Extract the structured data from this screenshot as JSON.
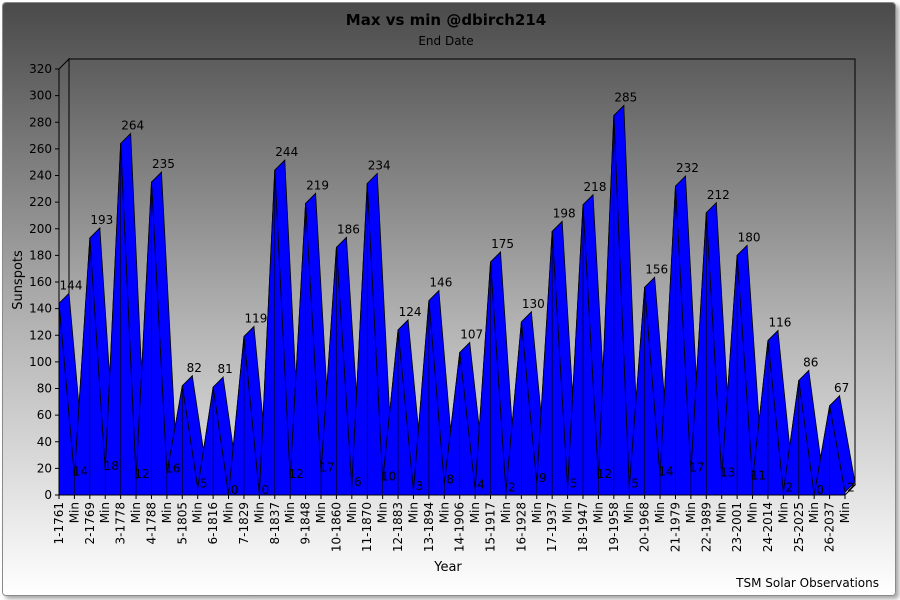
{
  "chart_data": {
    "type": "area",
    "title": "Max vs min @dbirch214",
    "subtitle": "End Date",
    "xlabel": "Year",
    "ylabel": "Sunspots",
    "footer": "TSM Solar Observations",
    "ylim": [
      0,
      320
    ],
    "yticks": [
      0,
      20,
      40,
      60,
      80,
      100,
      120,
      140,
      160,
      180,
      200,
      220,
      240,
      260,
      280,
      300,
      320
    ],
    "categories": [
      "1-1761",
      "Min",
      "2-1769",
      "Min",
      "3-1778",
      "Min",
      "4-1788",
      "Min",
      "5-1805",
      "Min",
      "6-1816",
      "Min",
      "7-1829",
      "Min",
      "8-1837",
      "Min",
      "9-1848",
      "Min",
      "10-1860",
      "Min",
      "11-1870",
      "Min",
      "12-1883",
      "Min",
      "13-1894",
      "Min",
      "14-1906",
      "Min",
      "15-1917",
      "Min",
      "16-1928",
      "Min",
      "17-1937",
      "Min",
      "18-1947",
      "Min",
      "19-1958",
      "Min",
      "20-1968",
      "Min",
      "21-1979",
      "Min",
      "22-1989",
      "Min",
      "23-2001",
      "Min",
      "24-2014",
      "Min",
      "25-2025",
      "Min",
      "26-2037",
      "Min"
    ],
    "series": [
      {
        "values": [
          144,
          14,
          193,
          18,
          264,
          12,
          235,
          16,
          82,
          5,
          81,
          0,
          119,
          0,
          244,
          12,
          219,
          17,
          186,
          6,
          234,
          10,
          124,
          3,
          146,
          8,
          107,
          4,
          175,
          2,
          130,
          9,
          198,
          5,
          218,
          12,
          285,
          5,
          156,
          14,
          232,
          17,
          212,
          13,
          180,
          11,
          116,
          2,
          86,
          0,
          67,
          2
        ],
        "color": "#0000ff"
      }
    ],
    "grid": false,
    "legend": "none",
    "colors": {
      "fill": "#0000ff",
      "outline": "#000000",
      "background_top": "#4a4a4a",
      "background_bottom": "#ffffff"
    }
  }
}
